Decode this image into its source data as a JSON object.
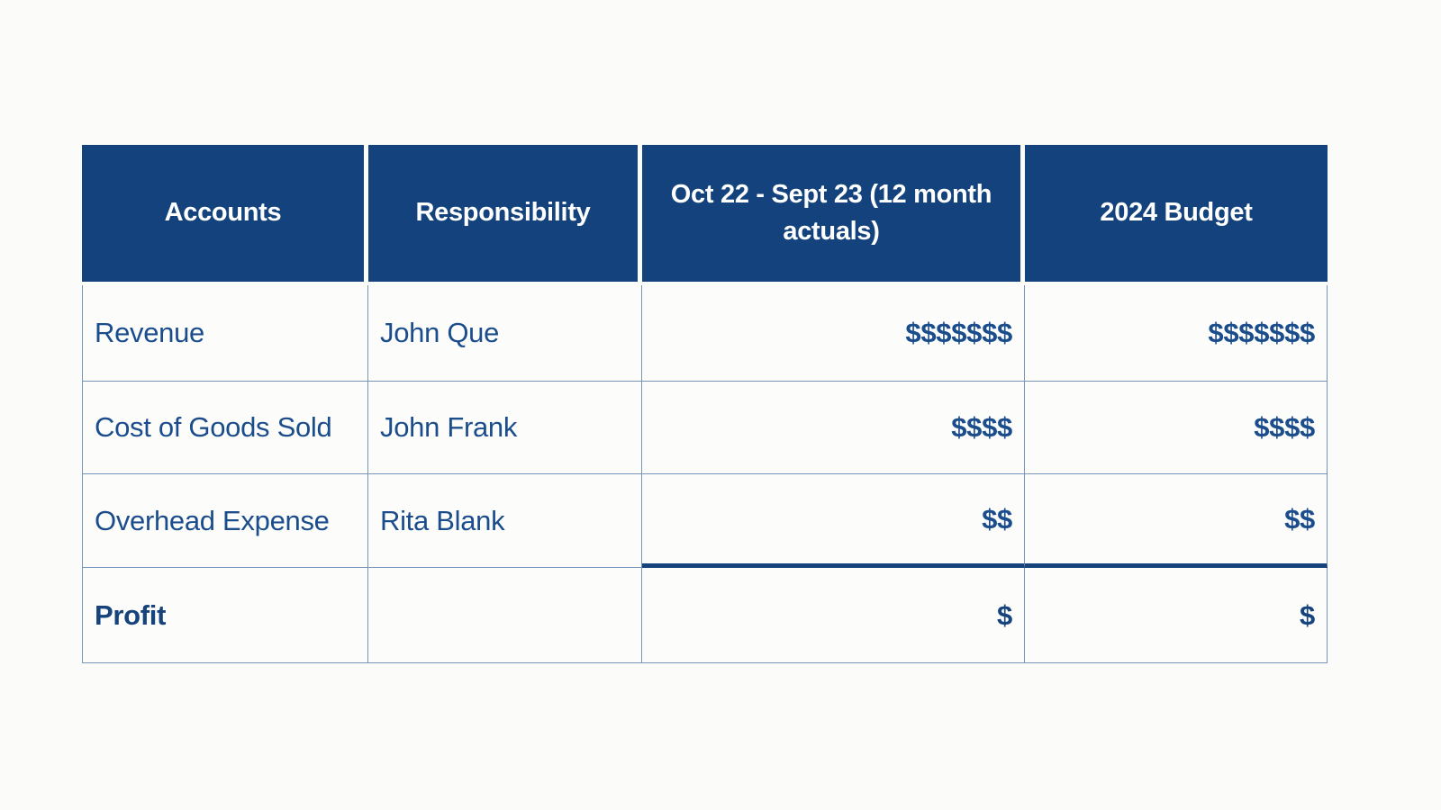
{
  "theme": {
    "page_bg": "#FBFBF9",
    "cell_bg": "#FCFCFB",
    "header_bg": "#13427C",
    "header_text": "#FFFFFF",
    "body_text": "#1B4D8C",
    "profit_text": "#16437B",
    "grid_line": "#7795B9",
    "thick_line": "#16437B"
  },
  "table": {
    "columns": [
      {
        "label": "Accounts"
      },
      {
        "label": "Responsibility"
      },
      {
        "label": "Oct 22 - Sept 23 (12 month actuals)"
      },
      {
        "label": "2024 Budget"
      }
    ],
    "rows": [
      {
        "account": "Revenue",
        "responsibility": "John Que",
        "actuals": "$$$$$$$",
        "budget": "$$$$$$$"
      },
      {
        "account": "Cost of Goods Sold",
        "responsibility": "John Frank",
        "actuals": "$$$$",
        "budget": "$$$$"
      },
      {
        "account": "Overhead Expense",
        "responsibility": "Rita Blank",
        "actuals": "$$",
        "budget": "$$"
      },
      {
        "account": "Profit",
        "responsibility": "",
        "actuals": "$",
        "budget": "$"
      }
    ]
  }
}
